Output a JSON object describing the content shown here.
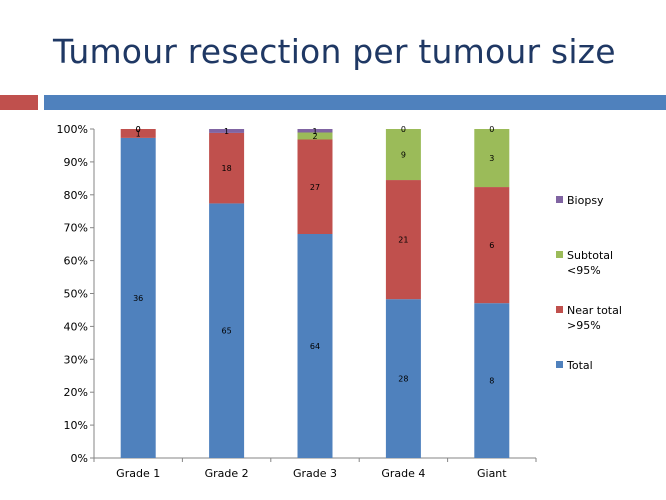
{
  "slide": {
    "title": "Tumour resection per tumour size"
  },
  "colors": {
    "title": "#1f3864",
    "accent_red": "#c0504d",
    "accent_blue": "#4f81bd",
    "axis": "#868686"
  },
  "chart_data": {
    "type": "bar",
    "stacked": true,
    "normalized_percent": true,
    "categories": [
      "Grade 1",
      "Grade 2",
      "Grade 3",
      "Grade 4",
      "Giant"
    ],
    "ylim": [
      0,
      100
    ],
    "yticks": [
      "0%",
      "10%",
      "20%",
      "30%",
      "40%",
      "50%",
      "60%",
      "70%",
      "80%",
      "90%",
      "100%"
    ],
    "grid": false,
    "legend_position": "right",
    "series": [
      {
        "name": "Total",
        "color": "#4f81bd",
        "values": [
          36,
          65,
          64,
          28,
          8
        ]
      },
      {
        "name": "Near total >95%",
        "legend_lines": [
          "Near total",
          ">95%"
        ],
        "color": "#c0504d",
        "values": [
          1,
          18,
          27,
          21,
          6
        ]
      },
      {
        "name": "Subtotal <95%",
        "legend_lines": [
          "Subtotal",
          "<95%"
        ],
        "color": "#9bbb59",
        "values": [
          0,
          0,
          2,
          9,
          3
        ]
      },
      {
        "name": "Biopsy",
        "legend_lines": [
          "Biopsy"
        ],
        "color": "#8064a2",
        "values": [
          0,
          1,
          1,
          0,
          0
        ]
      }
    ],
    "data_labels": [
      [
        "36",
        "65",
        "64",
        "28",
        "8"
      ],
      [
        "1",
        "18",
        "27",
        "21",
        "6"
      ],
      [
        "0",
        "",
        "2",
        "9",
        "3"
      ],
      [
        "0",
        "1",
        "1",
        "0",
        "0"
      ]
    ],
    "legend_order": [
      "Biopsy",
      "Subtotal <95%",
      "Near total >95%",
      "Total"
    ]
  }
}
